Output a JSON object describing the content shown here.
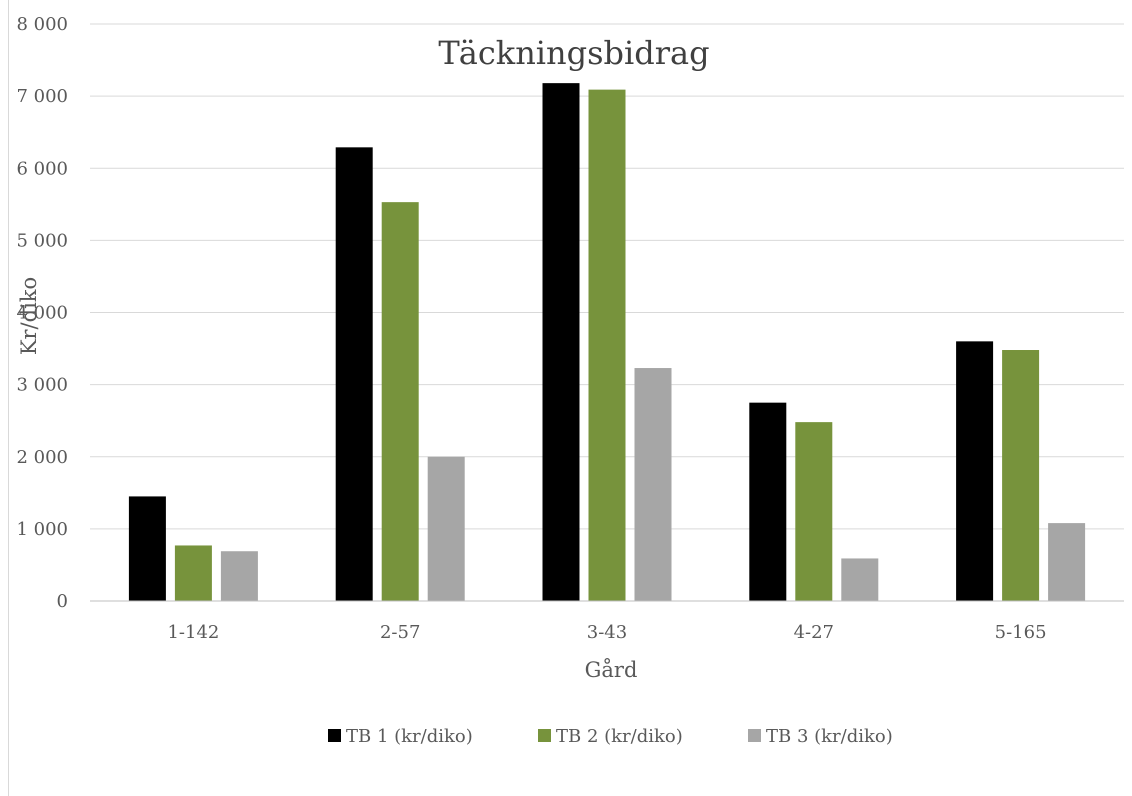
{
  "chart_data": {
    "type": "bar",
    "title": "Täckningsbidrag",
    "xlabel": "Gård",
    "ylabel": "Kr/diko",
    "categories": [
      "1-142",
      "2-57",
      "3-43",
      "4-27",
      "5-165"
    ],
    "series": [
      {
        "name": "TB 1 (kr/diko)",
        "color": "#000000",
        "values": [
          1450,
          6290,
          7180,
          2750,
          3600
        ]
      },
      {
        "name": "TB 2 (kr/diko)",
        "color": "#77933c",
        "values": [
          770,
          5530,
          7090,
          2480,
          3480
        ]
      },
      {
        "name": "TB 3 (kr/diko)",
        "color": "#a6a6a6",
        "values": [
          690,
          2000,
          3230,
          590,
          1080
        ]
      }
    ],
    "ylim": [
      0,
      8000
    ],
    "yticks": [
      {
        "value": 0,
        "label": "0"
      },
      {
        "value": 1000,
        "label": "1 000"
      },
      {
        "value": 2000,
        "label": "2 000"
      },
      {
        "value": 3000,
        "label": "3 000"
      },
      {
        "value": 4000,
        "label": "4 000"
      },
      {
        "value": 5000,
        "label": "5 000"
      },
      {
        "value": 6000,
        "label": "6 000"
      },
      {
        "value": 7000,
        "label": "7 000"
      },
      {
        "value": 8000,
        "label": "8 000"
      }
    ],
    "grid": true,
    "legend": "bottom"
  }
}
